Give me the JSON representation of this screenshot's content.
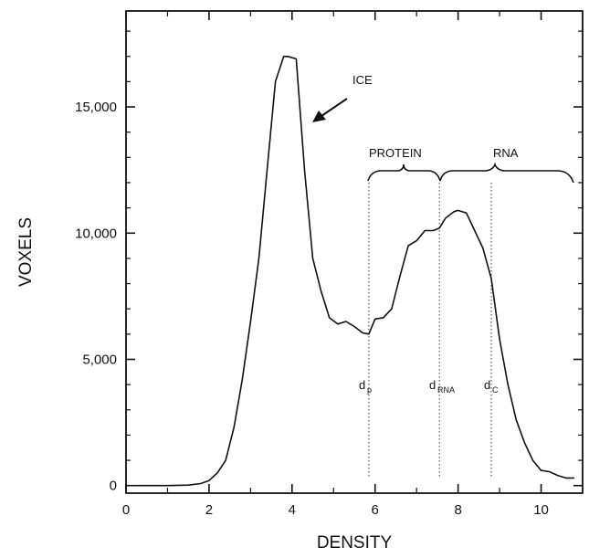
{
  "chart_data": {
    "type": "line",
    "title": "",
    "xlabel": "DENSITY",
    "ylabel": "VOXELS",
    "xlim": [
      0,
      11
    ],
    "ylim": [
      -300,
      18800
    ],
    "x_ticks": [
      {
        "value": 0,
        "label": "0"
      },
      {
        "value": 2,
        "label": "2"
      },
      {
        "value": 4,
        "label": "4"
      },
      {
        "value": 6,
        "label": "6"
      },
      {
        "value": 8,
        "label": "8"
      },
      {
        "value": 10,
        "label": "10"
      }
    ],
    "y_ticks": [
      {
        "value": 0,
        "label": "0"
      },
      {
        "value": 5000,
        "label": "5,000"
      },
      {
        "value": 10000,
        "label": "10,000"
      },
      {
        "value": 15000,
        "label": "15,000"
      }
    ],
    "grid": false,
    "series": [
      {
        "x": [
          0.2,
          1.0,
          1.5,
          1.8,
          2.0,
          2.2,
          2.4,
          2.6,
          2.8,
          3.0,
          3.2,
          3.4,
          3.6,
          3.8,
          3.9,
          4.1,
          4.3,
          4.5,
          4.7,
          4.9,
          5.1,
          5.3,
          5.5,
          5.7,
          5.85,
          6.0,
          6.2,
          6.4,
          6.6,
          6.8,
          7.0,
          7.2,
          7.4,
          7.55,
          7.7,
          7.9,
          8.0,
          8.2,
          8.4,
          8.6,
          8.8,
          9.0,
          9.2,
          9.4,
          9.6,
          9.8,
          10.0,
          10.2,
          10.4,
          10.6,
          10.8
        ],
        "y": [
          0,
          0,
          20,
          80,
          200,
          500,
          1000,
          2300,
          4200,
          6500,
          9000,
          12500,
          16000,
          17000,
          17000,
          16900,
          12500,
          9000,
          7700,
          6650,
          6400,
          6500,
          6300,
          6050,
          6000,
          6600,
          6650,
          7000,
          8300,
          9500,
          9700,
          10100,
          10100,
          10200,
          10600,
          10850,
          10900,
          10800,
          10100,
          9400,
          8200,
          5800,
          4000,
          2600,
          1700,
          1000,
          600,
          550,
          400,
          300,
          300
        ]
      }
    ],
    "markers": [
      {
        "x": 5.85,
        "label_main": "d",
        "label_sub": "p"
      },
      {
        "x": 7.55,
        "label_main": "d",
        "label_sub": "RNA"
      },
      {
        "x": 8.8,
        "label_main": "d",
        "label_sub": "C"
      }
    ],
    "annotations": {
      "ice_label": "ICE",
      "protein_label": "PROTEIN",
      "rna_label": "RNA"
    }
  }
}
